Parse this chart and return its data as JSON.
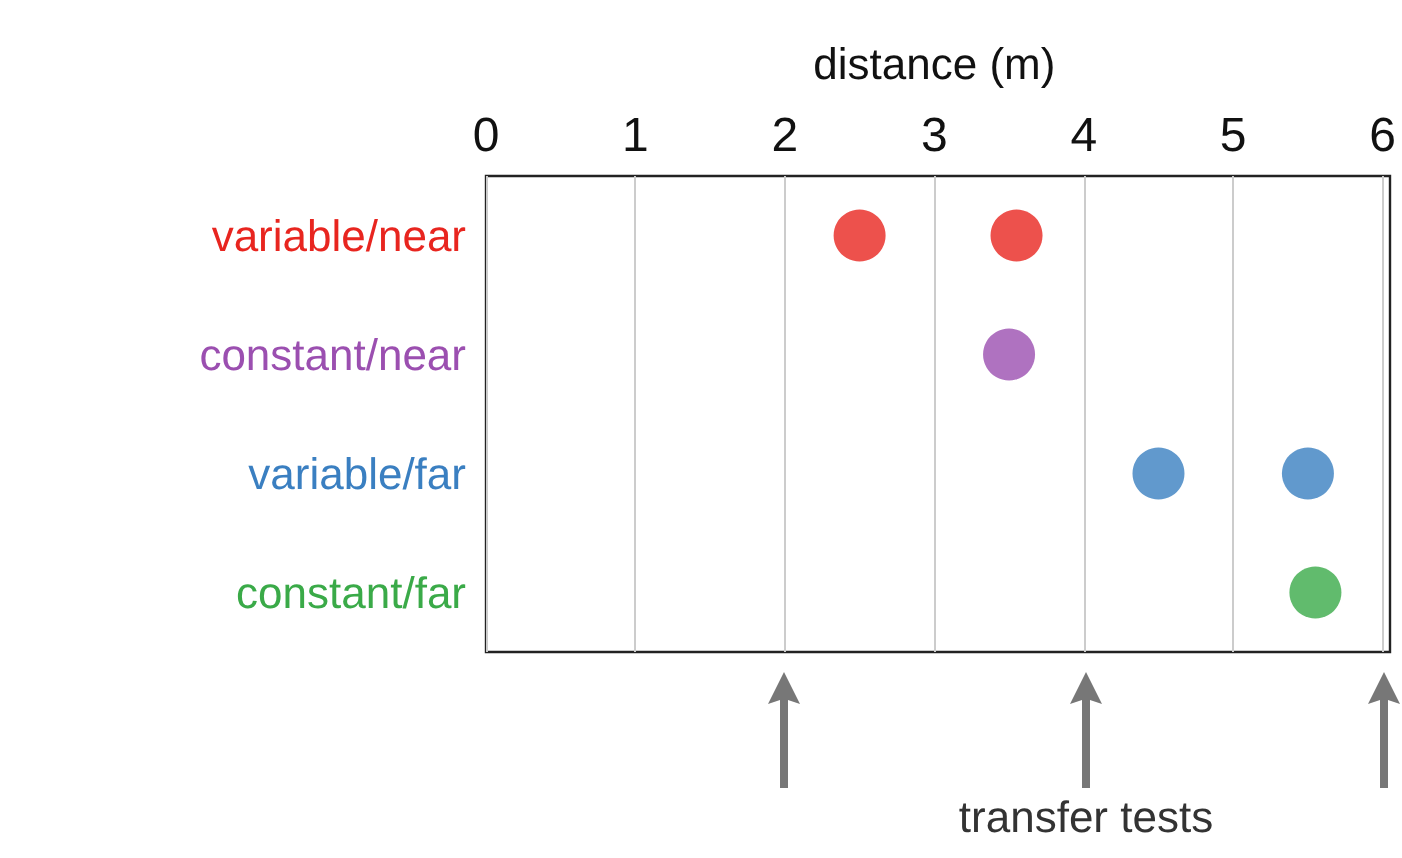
{
  "chart_data": {
    "type": "scatter",
    "orientation": "horizontal",
    "xlabel": "distance (m)",
    "categories": [
      "variable/near",
      "constant/near",
      "variable/far",
      "constant/far"
    ],
    "series": [
      {
        "colors": [
          "#e8251f",
          "#9b4fb0",
          "#3a7fc1",
          "#3aaa48"
        ],
        "values": [
          2.5,
          3.5,
          4.5,
          5.55
        ]
      },
      {
        "colors": [
          "#e8251f",
          "#9b4fb0",
          "#3a7fc1",
          "#3aaa48"
        ],
        "values": [
          3.55,
          null,
          5.5,
          null
        ]
      }
    ],
    "xlim": [
      0,
      6
    ],
    "xticks": [
      0,
      1,
      2,
      3,
      4,
      5,
      6
    ],
    "grid": "x",
    "marker": "circle",
    "annotations": [
      "transfer tests"
    ]
  }
}
